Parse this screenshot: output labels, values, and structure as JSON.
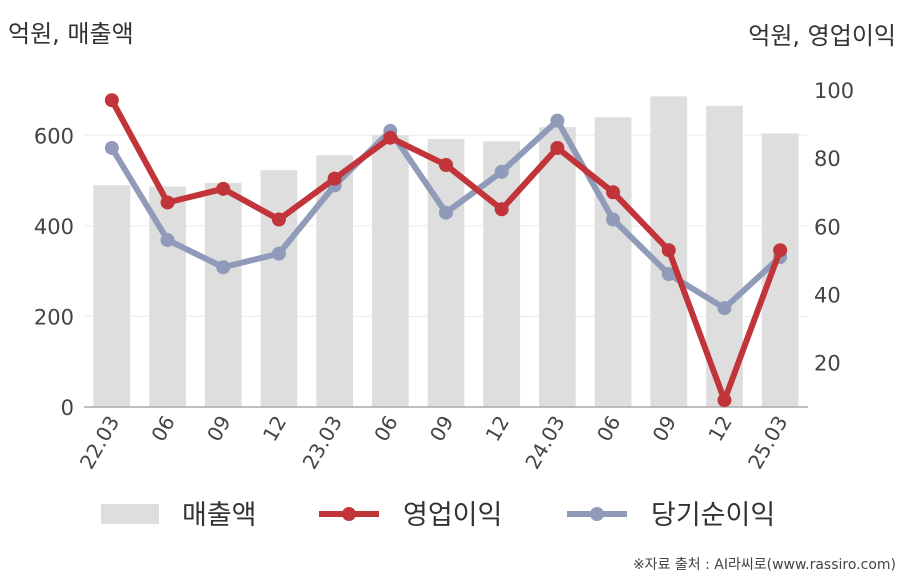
{
  "left_unit": "억원, 매출액",
  "right_unit": "억원, 영업이익",
  "source": "※자료 출처 : AI라씨로(www.rassiro.com)",
  "colors": {
    "revenue": "#dedede",
    "operating_profit": "#c0343a",
    "net_income": "#8f9bb8",
    "axis": "#aaaaaa",
    "grid": "#ececec"
  },
  "chart_data": {
    "type": "bar",
    "categories": [
      "22.03",
      "06",
      "09",
      "12",
      "23.03",
      "06",
      "09",
      "12",
      "24.03",
      "06",
      "09",
      "12",
      "25.03"
    ],
    "left_axis": {
      "min": 0,
      "max": 700,
      "ticks": [
        0,
        200,
        400,
        600
      ]
    },
    "right_axis": {
      "min": 7,
      "max": 100,
      "ticks": [
        20,
        40,
        60,
        80,
        100
      ]
    },
    "series": [
      {
        "name": "매출액",
        "type": "bar",
        "axis": "left",
        "values": [
          490,
          487,
          495,
          523,
          556,
          600,
          592,
          587,
          618,
          640,
          686,
          665,
          604
        ]
      },
      {
        "name": "영업이익",
        "type": "line",
        "axis": "right",
        "values": [
          97,
          67,
          71,
          62,
          74,
          86,
          78,
          65,
          83,
          70,
          53,
          9,
          53
        ]
      },
      {
        "name": "당기순이익",
        "type": "line",
        "axis": "right",
        "values": [
          83,
          56,
          48,
          52,
          72,
          88,
          64,
          76,
          91,
          62,
          46,
          36,
          51
        ]
      }
    ],
    "grid": true,
    "legend_position": "bottom"
  }
}
